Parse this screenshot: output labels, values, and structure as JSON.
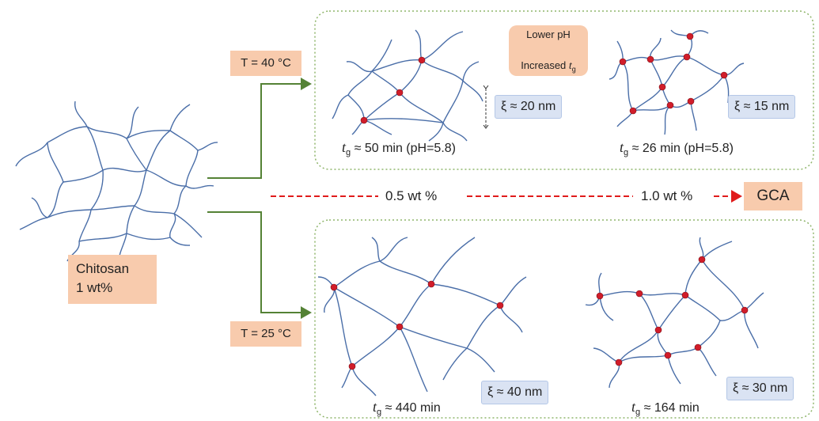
{
  "chitosan": {
    "line1": "Chitosan",
    "line2": "1 wt%"
  },
  "temps": {
    "top": "T = 40 °C",
    "bottom": "T = 25 °C"
  },
  "ph_box": {
    "line1": "Lower pH",
    "line2": "Increased",
    "symbol": "t",
    "subscript": "g"
  },
  "top_panel": {
    "left_xi": "ξ ≈ 20 nm",
    "right_xi": "ξ ≈ 15 nm",
    "left_tg": "≈ 50 min (pH=5.8)",
    "right_tg": "≈ 26 min (pH=5.8)"
  },
  "bottom_panel": {
    "left_xi": "ξ ≈ 40 nm",
    "right_xi": "ξ ≈ 30 nm",
    "left_tg": "≈ 440 min",
    "right_tg": "≈ 164 min"
  },
  "tg_symbol": "t",
  "tg_subscript": "g",
  "concentration": {
    "low": "0.5 wt %",
    "high": "1.0 wt %",
    "result": "GCA"
  },
  "colors": {
    "chain": "#4a6ea8",
    "crosslink": "#d11d2a",
    "panel_border": "#8fb56b",
    "arrow": "#548235",
    "dashed": "#e01b1b",
    "label_bg": "#f8cbad",
    "xi_bg": "#dae3f3"
  }
}
